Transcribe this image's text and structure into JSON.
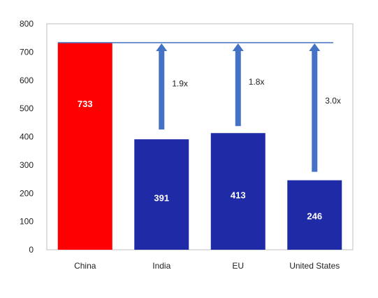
{
  "chart_data": {
    "type": "bar",
    "categories": [
      "China",
      "India",
      "EU",
      "United States"
    ],
    "values": [
      733,
      391,
      413,
      246
    ],
    "title": "",
    "xlabel": "",
    "ylabel": "",
    "ylim": [
      0,
      800
    ],
    "yticks": [
      0,
      100,
      200,
      300,
      400,
      500,
      600,
      700,
      800
    ],
    "grid": false,
    "legend": "none",
    "reference_line": 733,
    "multipliers": [
      {
        "category": "India",
        "label": "1.9x"
      },
      {
        "category": "EU",
        "label": "1.8x"
      },
      {
        "category": "United States",
        "label": "3.0x"
      }
    ],
    "colors": {
      "highlight": "#ff0000",
      "bar": "#1f2aa6",
      "arrow": "#4472c4",
      "reference_line": "#4472c4",
      "axis": "#bfbfbf"
    }
  }
}
